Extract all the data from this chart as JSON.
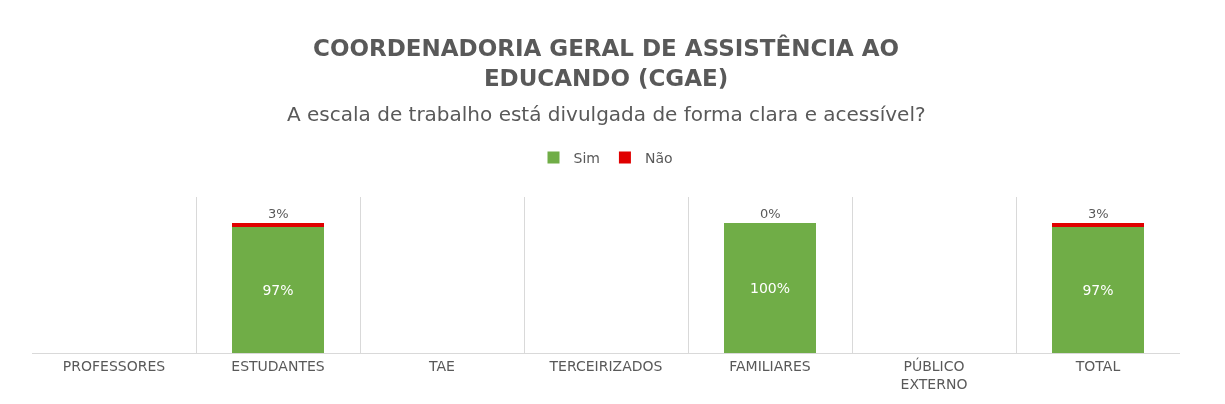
{
  "chart_data": {
    "type": "bar",
    "stacked": true,
    "title": "COORDENADORIA GERAL DE ASSISTÊNCIA AO EDUCANDO (CGAE)",
    "subtitle": "A escala de trabalho está divulgada de forma clara e acessível?",
    "categories": [
      "PROFESSORES",
      "ESTUDANTES",
      "TAE",
      "TERCEIRIZADOS",
      "FAMILIARES",
      "PÚBLICO EXTERNO",
      "TOTAL"
    ],
    "series": [
      {
        "name": "Sim",
        "color": "#70ad47",
        "values": [
          null,
          97,
          null,
          null,
          100,
          null,
          97
        ],
        "value_labels": [
          null,
          "97%",
          null,
          null,
          "100%",
          null,
          "97%"
        ]
      },
      {
        "name": "Não",
        "color": "#e00000",
        "values": [
          null,
          3,
          null,
          null,
          0,
          null,
          3
        ],
        "value_labels": [
          null,
          "3%",
          null,
          null,
          "0%",
          null,
          "3%"
        ]
      }
    ],
    "ylim": [
      0,
      120
    ],
    "grid": "x",
    "legend": "top",
    "tick_labels": "x"
  }
}
